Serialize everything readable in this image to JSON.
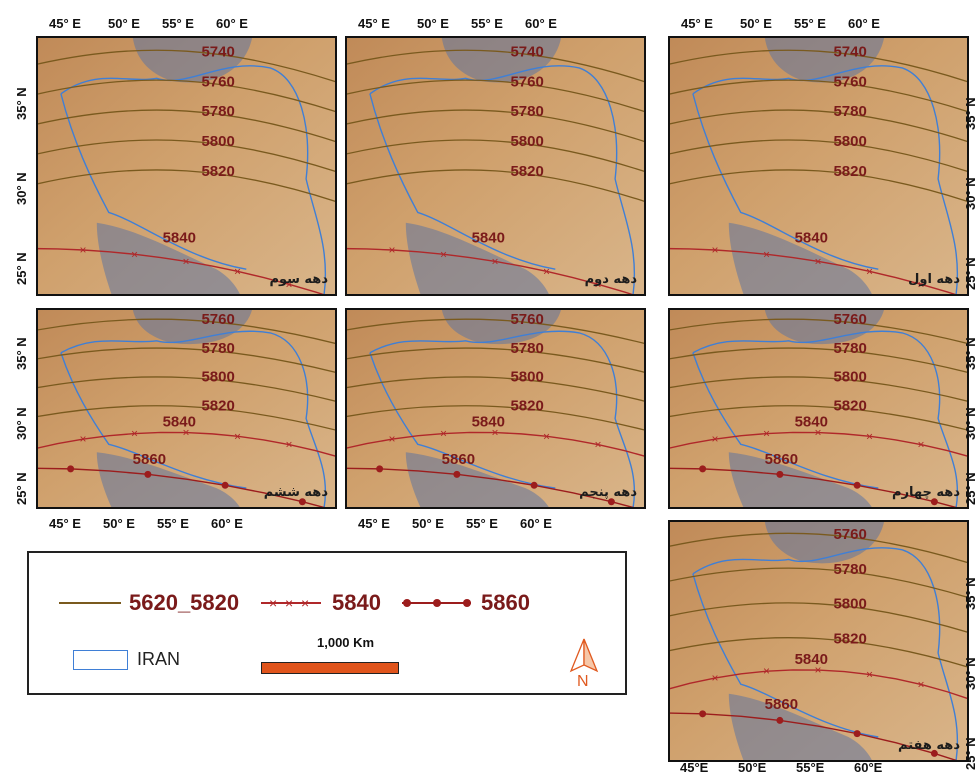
{
  "top_lon_labels": [
    "45° E",
    "50° E",
    "55° E",
    "60° E"
  ],
  "bottom_lon_labels": [
    "45° E",
    "50° E",
    "55° E",
    "60° E"
  ],
  "panel7_lon_labels": [
    "45°E",
    "50°E",
    "55°E",
    "60°E"
  ],
  "lat_labels": [
    "35° N",
    "30° N",
    "25° N"
  ],
  "right_lat_labels": [
    "35° N",
    "30° N",
    "25° N"
  ],
  "panels": [
    {
      "id": "p1",
      "title": "دهه سوم",
      "contours": [
        "5740",
        "5760",
        "5780",
        "5800",
        "5820"
      ],
      "has5840": true,
      "has5860": false,
      "label5840": "5840",
      "label5860": ""
    },
    {
      "id": "p2",
      "title": "دهه دوم",
      "contours": [
        "5740",
        "5760",
        "5780",
        "5800",
        "5820"
      ],
      "has5840": true,
      "has5860": false,
      "label5840": "5840",
      "label5860": ""
    },
    {
      "id": "p3",
      "title": "دهه اول",
      "contours": [
        "5740",
        "5760",
        "5780",
        "5800",
        "5820"
      ],
      "has5840": true,
      "has5860": false,
      "label5840": "5840",
      "label5860": ""
    },
    {
      "id": "p4",
      "title": "دهه ششم",
      "contours": [
        "5760",
        "5780",
        "5800",
        "5820"
      ],
      "has5840": true,
      "has5860": true,
      "label5840": "5840",
      "label5860": "5860"
    },
    {
      "id": "p5",
      "title": "دهه پنجم",
      "contours": [
        "5760",
        "5780",
        "5800",
        "5820"
      ],
      "has5840": true,
      "has5860": true,
      "label5840": "5840",
      "label5860": "5860"
    },
    {
      "id": "p6",
      "title": "دهه چهارم",
      "contours": [
        "5760",
        "5780",
        "5800",
        "5820"
      ],
      "has5840": true,
      "has5860": true,
      "label5840": "5840",
      "label5860": "5860"
    },
    {
      "id": "p7",
      "title": "دهه هفتم",
      "contours": [
        "5760",
        "5780",
        "5800",
        "5820"
      ],
      "has5840": true,
      "has5860": true,
      "label5840": "5840",
      "label5860": "5860"
    }
  ],
  "legend": {
    "line1_label": "5620_5820",
    "line2_label": "5840",
    "line3_label": "5860",
    "iran_label": "IRAN",
    "scale_label": "1,000 Km",
    "north_label": "N"
  },
  "colors": {
    "contour": "#7a5a1e",
    "contour_5840": "#b0282a",
    "contour_5860": "#9c1d1d",
    "label": "#7a1a1a",
    "iran_border": "#3f7fd6",
    "sea": "#5f74a0"
  }
}
